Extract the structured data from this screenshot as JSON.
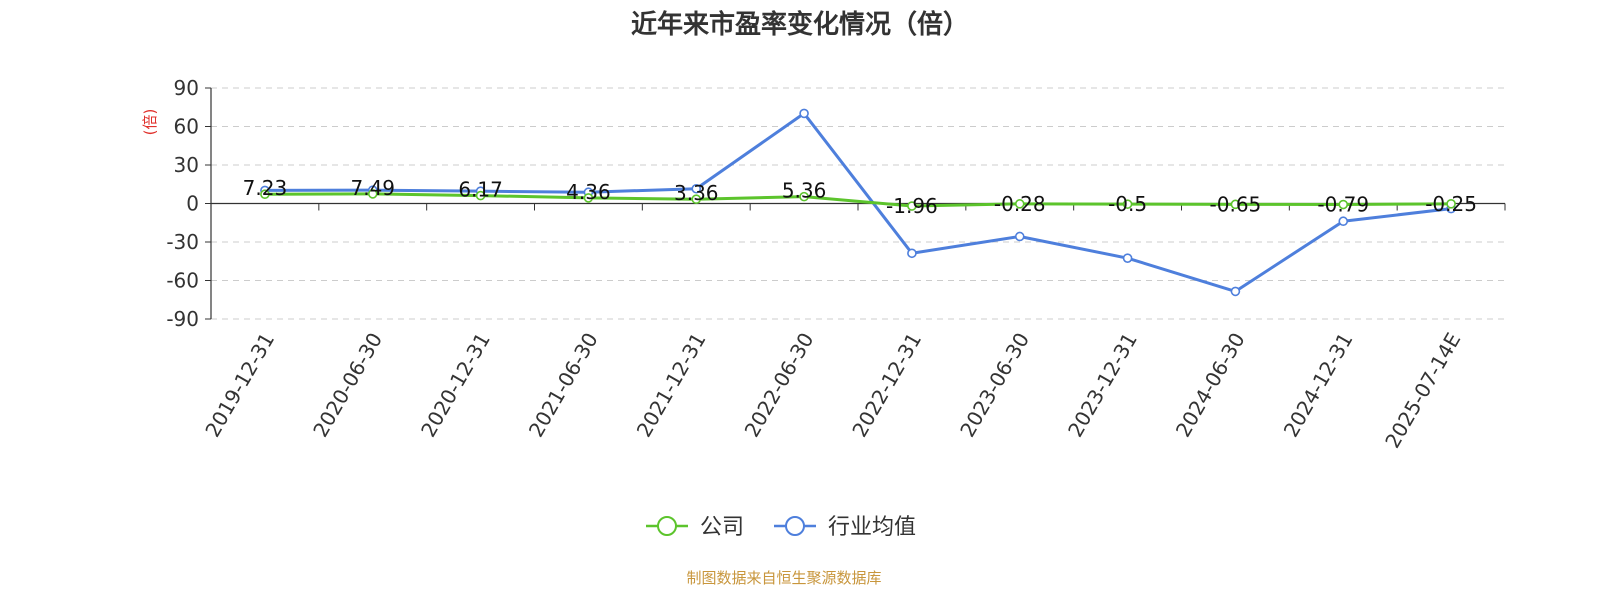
{
  "chart_data": {
    "type": "line",
    "title": "近年来市盈率变化情况（倍）",
    "ylabel": "(倍)",
    "ylim": [
      -90,
      90
    ],
    "yticks": [
      90,
      60,
      30,
      0,
      -30,
      -60,
      -90
    ],
    "categories": [
      "2019-12-31",
      "2020-06-30",
      "2020-12-31",
      "2021-06-30",
      "2021-12-31",
      "2022-06-30",
      "2022-12-31",
      "2023-06-30",
      "2023-12-31",
      "2024-06-30",
      "2024-12-31",
      "2025-07-14E"
    ],
    "series": [
      {
        "name": "公司",
        "color": "#5cc42c",
        "values": [
          7.23,
          7.49,
          6.17,
          4.36,
          3.36,
          5.36,
          -1.96,
          -0.28,
          -0.5,
          -0.65,
          -0.79,
          -0.25
        ],
        "labels": [
          "7.23",
          "7.49",
          "6.17",
          "4.36",
          "3.36",
          "5.36",
          "-1.96",
          "-0.28",
          "-0.5",
          "-0.65",
          "-0.79",
          "-0.25"
        ]
      },
      {
        "name": "行业均值",
        "color": "#4e7fdc",
        "values": [
          10.2,
          10.4,
          9.6,
          8.8,
          11.5,
          70.2,
          -38.8,
          -25.7,
          -42.6,
          -68.5,
          -13.8,
          -4.0
        ]
      }
    ],
    "grid": true,
    "legend_position": "bottom-center",
    "source": "制图数据来自恒生聚源数据库",
    "colors": {
      "ylabel": "#e0312c",
      "source": "#c8963c",
      "grid": "#cccccc",
      "axis": "#333333"
    }
  }
}
